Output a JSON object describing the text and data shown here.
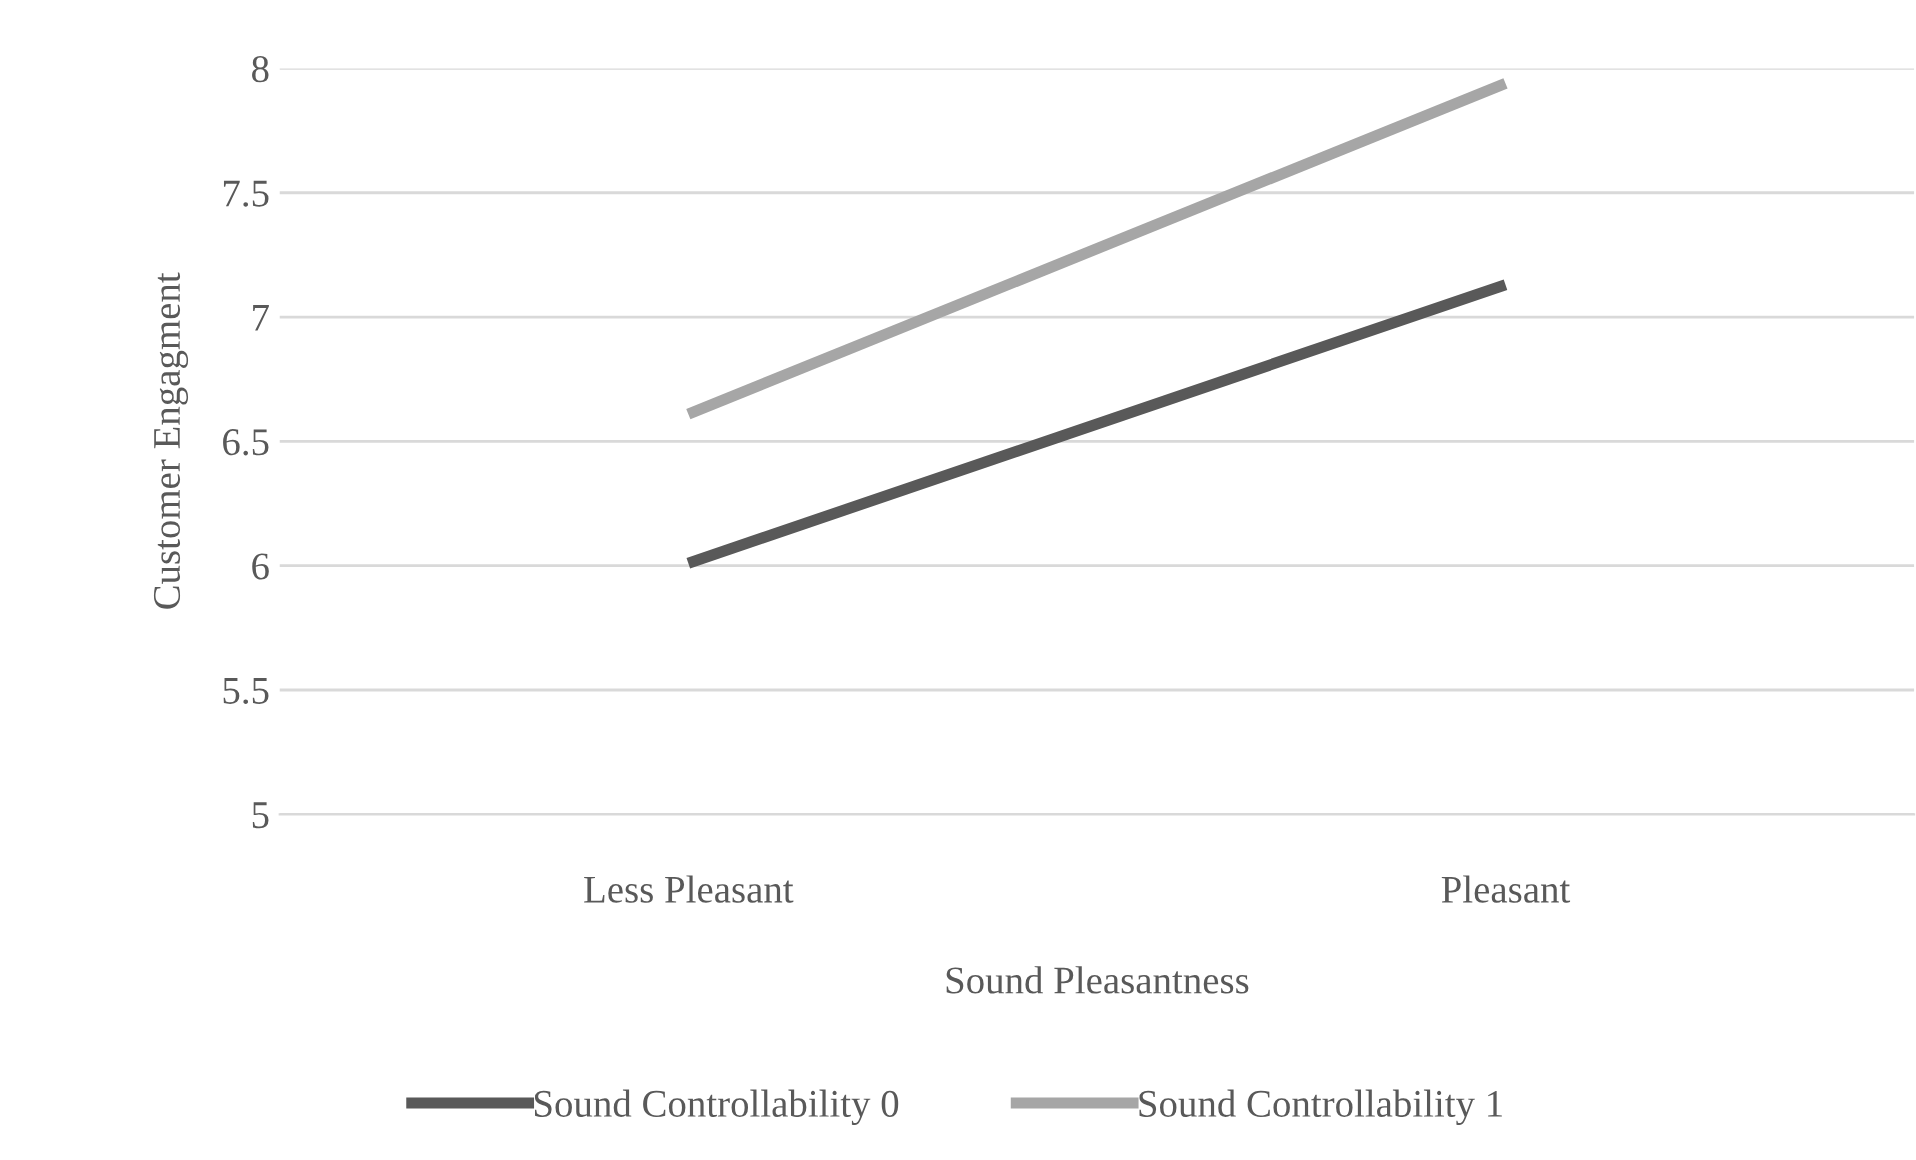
{
  "chart_data": {
    "type": "line",
    "xlabel": "Sound Pleasantness",
    "ylabel": "Customer Engagment",
    "categories": [
      "Less Pleasant",
      "Pleasant"
    ],
    "series": [
      {
        "name": "Sound Controllability 0",
        "color": "#595959",
        "values": [
          6.01,
          7.13
        ]
      },
      {
        "name": "Sound Controllability 1",
        "color": "#a6a6a6",
        "values": [
          6.61,
          7.94
        ]
      }
    ],
    "ylim": [
      5,
      8
    ],
    "yticks": [
      5,
      5.5,
      6,
      6.5,
      7,
      7.5,
      8
    ],
    "grid": "y",
    "legend": "bottom",
    "marker": "none",
    "line_style": "solid"
  }
}
